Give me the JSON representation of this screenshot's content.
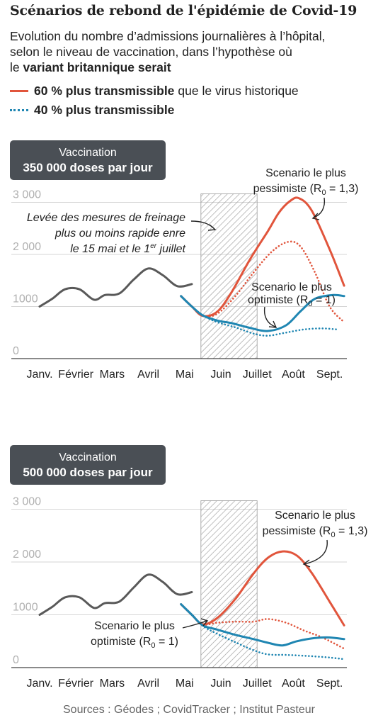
{
  "header": {
    "title": "Scénarios de rebond de l'épidémie de Covid-19",
    "subtitle_line1": "Evolution du nombre d’admissions journalières à l’hôpital,",
    "subtitle_line2": "selon le niveau de vaccination, dans l’hypothèse où",
    "subtitle_line3_prefix": "le ",
    "subtitle_line3_bold": "variant britannique serait",
    "legend": [
      {
        "bold": "60 % plus transmissible",
        "rest": "que le virus historique",
        "color": "#e1553c",
        "style": "solid"
      },
      {
        "bold": "40 % plus transmissible",
        "rest": "",
        "color": "#1f86b2",
        "style": "dotted"
      }
    ]
  },
  "colors": {
    "red": "#e1553c",
    "blue": "#1f86b2",
    "gray": "#595959",
    "hatch": "#9a9a9a",
    "grid": "#d5d5d5"
  },
  "months": [
    "Janv.",
    "Février",
    "Mars",
    "Avril",
    "Mai",
    "Juin",
    "Juillet",
    "Août",
    "Sept."
  ],
  "yticks": [
    0,
    1000,
    2000,
    3000
  ],
  "yticklabels": [
    "0",
    "1000",
    "2 000",
    "3 000"
  ],
  "chart_data": [
    {
      "type": "line",
      "badge_line1": "Vaccination",
      "badge_line2": "350 000 doses par jour",
      "ylim": [
        0,
        3000
      ],
      "shaded_period_label": "Levée des mesures de freinage plus ou moins rapide enre le 15 mai et le 1er juillet",
      "shaded_period_lines": [
        "Levée des mesures de freinage",
        "plus ou moins rapide enre",
        "le 15 mai et le 1"
      ],
      "shaded_sup": "er",
      "shaded_tail": " juillet",
      "pessimiste_label": [
        "Scenario le plus",
        "pessimiste (R",
        "0",
        " = 1,3)"
      ],
      "optimiste_label": [
        "Scenario le plus",
        "optimiste (R",
        "0",
        " = 1)"
      ],
      "series": [
        {
          "id": "observed",
          "color": "gray",
          "dash": false,
          "points": [
            [
              0.0,
              1000
            ],
            [
              0.35,
              1150
            ],
            [
              0.7,
              1330
            ],
            [
              1.1,
              1330
            ],
            [
              1.5,
              1130
            ],
            [
              1.8,
              1220
            ],
            [
              2.2,
              1250
            ],
            [
              2.6,
              1520
            ],
            [
              3.0,
              1730
            ],
            [
              3.4,
              1600
            ],
            [
              3.8,
              1390
            ],
            [
              4.2,
              1430
            ]
          ]
        },
        {
          "id": "60-pessimiste",
          "color": "red",
          "dash": false,
          "points": [
            [
              3.9,
              1200
            ],
            [
              4.2,
              1000
            ],
            [
              4.5,
              820
            ],
            [
              4.9,
              900
            ],
            [
              5.3,
              1280
            ],
            [
              5.8,
              1900
            ],
            [
              6.3,
              2450
            ],
            [
              6.6,
              2800
            ],
            [
              6.9,
              3020
            ],
            [
              7.15,
              3080
            ],
            [
              7.5,
              2850
            ],
            [
              8.0,
              2100
            ],
            [
              8.4,
              1400
            ]
          ]
        },
        {
          "id": "40-pessimiste",
          "color": "red",
          "dash": true,
          "points": [
            [
              3.9,
              1200
            ],
            [
              4.2,
              1000
            ],
            [
              4.5,
              820
            ],
            [
              4.9,
              860
            ],
            [
              5.4,
              1200
            ],
            [
              5.9,
              1650
            ],
            [
              6.4,
              2050
            ],
            [
              6.85,
              2240
            ],
            [
              7.2,
              2150
            ],
            [
              7.6,
              1650
            ],
            [
              8.0,
              1000
            ],
            [
              8.4,
              700
            ]
          ]
        },
        {
          "id": "60-optimiste",
          "color": "blue",
          "dash": false,
          "points": [
            [
              3.9,
              1200
            ],
            [
              4.2,
              1000
            ],
            [
              4.5,
              830
            ],
            [
              4.9,
              730
            ],
            [
              5.3,
              680
            ],
            [
              5.8,
              590
            ],
            [
              6.3,
              530
            ],
            [
              6.8,
              640
            ],
            [
              7.2,
              910
            ],
            [
              7.6,
              1150
            ],
            [
              8.1,
              1220
            ],
            [
              8.4,
              1200
            ]
          ]
        },
        {
          "id": "40-optimiste",
          "color": "blue",
          "dash": true,
          "points": [
            [
              3.9,
              1200
            ],
            [
              4.2,
              1000
            ],
            [
              4.5,
              830
            ],
            [
              4.9,
              700
            ],
            [
              5.4,
              600
            ],
            [
              5.9,
              480
            ],
            [
              6.3,
              440
            ],
            [
              6.8,
              500
            ],
            [
              7.3,
              560
            ],
            [
              7.8,
              580
            ],
            [
              8.2,
              560
            ]
          ]
        }
      ]
    },
    {
      "type": "line",
      "badge_line1": "Vaccination",
      "badge_line2": "500 000 doses par jour",
      "ylim": [
        0,
        3000
      ],
      "pessimiste_label": [
        "Scenario le plus",
        "pessimiste (R",
        "0",
        " = 1,3)"
      ],
      "optimiste_label": [
        "Scenario le plus",
        "optimiste (R",
        "0",
        " = 1)"
      ],
      "series": [
        {
          "id": "observed",
          "color": "gray",
          "dash": false,
          "points": [
            [
              0.0,
              1000
            ],
            [
              0.35,
              1150
            ],
            [
              0.7,
              1330
            ],
            [
              1.1,
              1330
            ],
            [
              1.5,
              1130
            ],
            [
              1.8,
              1220
            ],
            [
              2.2,
              1250
            ],
            [
              2.6,
              1520
            ],
            [
              3.0,
              1760
            ],
            [
              3.4,
              1620
            ],
            [
              3.8,
              1390
            ],
            [
              4.2,
              1430
            ]
          ]
        },
        {
          "id": "60-pessimiste",
          "color": "red",
          "dash": false,
          "points": [
            [
              3.9,
              1200
            ],
            [
              4.2,
              1000
            ],
            [
              4.5,
              820
            ],
            [
              4.9,
              940
            ],
            [
              5.4,
              1300
            ],
            [
              5.9,
              1780
            ],
            [
              6.3,
              2080
            ],
            [
              6.7,
              2200
            ],
            [
              7.1,
              2120
            ],
            [
              7.5,
              1800
            ],
            [
              8.0,
              1250
            ],
            [
              8.4,
              800
            ]
          ]
        },
        {
          "id": "40-pessimiste",
          "color": "red",
          "dash": true,
          "points": [
            [
              3.9,
              1200
            ],
            [
              4.2,
              1000
            ],
            [
              4.5,
              820
            ],
            [
              4.9,
              850
            ],
            [
              5.4,
              870
            ],
            [
              5.9,
              870
            ],
            [
              6.3,
              920
            ],
            [
              6.8,
              850
            ],
            [
              7.3,
              700
            ],
            [
              7.8,
              570
            ],
            [
              8.4,
              360
            ]
          ]
        },
        {
          "id": "60-optimiste",
          "color": "blue",
          "dash": false,
          "points": [
            [
              3.9,
              1200
            ],
            [
              4.2,
              1000
            ],
            [
              4.5,
              800
            ],
            [
              4.9,
              720
            ],
            [
              5.4,
              620
            ],
            [
              5.9,
              540
            ],
            [
              6.3,
              470
            ],
            [
              6.7,
              420
            ],
            [
              7.1,
              500
            ],
            [
              7.6,
              560
            ],
            [
              8.0,
              570
            ],
            [
              8.4,
              540
            ]
          ]
        },
        {
          "id": "40-optimiste",
          "color": "blue",
          "dash": true,
          "points": [
            [
              3.9,
              1200
            ],
            [
              4.2,
              1000
            ],
            [
              4.5,
              790
            ],
            [
              4.9,
              640
            ],
            [
              5.4,
              480
            ],
            [
              5.9,
              330
            ],
            [
              6.3,
              250
            ],
            [
              6.8,
              240
            ],
            [
              7.4,
              220
            ],
            [
              8.0,
              190
            ],
            [
              8.4,
              160
            ]
          ]
        }
      ]
    }
  ],
  "sources": "Sources : Géodes ; CovidTracker ; Institut Pasteur"
}
